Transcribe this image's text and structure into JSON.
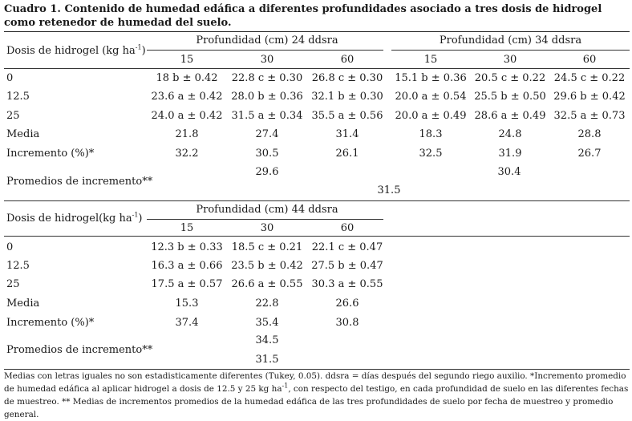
{
  "title": "Cuadro 1. Contenido de humedad edáfica a diferentes profundidades asociado a tres dosis de hidrogel como retenedor de humedad del suelo.",
  "table1": {
    "row_header": "Dosis de hidrogel (kg ha",
    "row_header_sup": "-1",
    "row_header_end": ")",
    "groups": [
      "Profundidad (cm) 24 ddsra",
      "Profundidad (cm) 34 ddsra"
    ],
    "depths": [
      "15",
      "30",
      "60",
      "15",
      "30",
      "60"
    ],
    "rows": [
      {
        "label": "0",
        "cells": [
          "18 b ± 0.42",
          "22.8 c ± 0.30",
          "26.8 c ± 0.30",
          "15.1 b ± 0.36",
          "20.5 c ± 0.22",
          "24.5 c ± 0.22"
        ]
      },
      {
        "label": "12.5",
        "cells": [
          "23.6 a ± 0.42",
          "28.0 b ± 0.36",
          "32.1 b ± 0.30",
          "20.0 a ± 0.54",
          "25.5 b ± 0.50",
          "29.6 b ± 0.42"
        ]
      },
      {
        "label": "25",
        "cells": [
          "24.0 a ± 0.42",
          "31.5 a ± 0.34",
          "35.5 a ± 0.56",
          "20.0 a ± 0.49",
          "28.6 a ± 0.49",
          "32.5 a ± 0.73"
        ]
      },
      {
        "label": "Media",
        "cells": [
          "21.8",
          "27.4",
          "31.4",
          "18.3",
          "24.8",
          "28.8"
        ]
      },
      {
        "label": "Incremento (%)*",
        "cells": [
          "32.2",
          "30.5",
          "26.1",
          "32.5",
          "31.9",
          "26.7"
        ]
      }
    ],
    "group_avg": [
      "29.6",
      "30.4"
    ],
    "promedios_label": "Promedios de  incremento**",
    "overall_avg": "31.5"
  },
  "table2": {
    "row_header": "Dosis de hidrogel(kg ha",
    "row_header_sup": "-1",
    "row_header_end": ")",
    "group": "Profundidad (cm) 44 ddsra",
    "depths": [
      "15",
      "30",
      "60"
    ],
    "rows": [
      {
        "label": "0",
        "cells": [
          "12.3 b ± 0.33",
          "18.5 c ± 0.21",
          "22.1 c ± 0.47"
        ]
      },
      {
        "label": "12.5",
        "cells": [
          "16.3 a ± 0.66",
          "23.5 b ± 0.42",
          "27.5 b ± 0.47"
        ]
      },
      {
        "label": "25",
        "cells": [
          "17.5 a ± 0.57",
          "26.6 a ± 0.55",
          "30.3 a ± 0.55"
        ]
      },
      {
        "label": "Media",
        "cells": [
          "15.3",
          "22.8",
          "26.6"
        ]
      },
      {
        "label": "Incremento (%)*",
        "cells": [
          "37.4",
          "35.4",
          "30.8"
        ]
      }
    ],
    "promedios_label": "Promedios de incremento**",
    "group_avg": "34.5",
    "overall_avg": "31.5"
  },
  "footnote_prefix": "Medias con letras iguales no son estadisticamente diferentes (Tukey, 0.05). ddsra = días después del segundo riego auxilio. *Incremento promedio de humedad edáfica al aplicar hidrogel a dosis de 12.5 y 25 kg ha",
  "footnote_sup": "-1",
  "footnote_suffix": ", con respecto del testigo, en cada profundidad de suelo en las diferentes fechas de muestreo. ** Medias de incrementos promedios de la humedad edáfica de las tres profundidades de suelo por fecha de muestreo y promedio general."
}
